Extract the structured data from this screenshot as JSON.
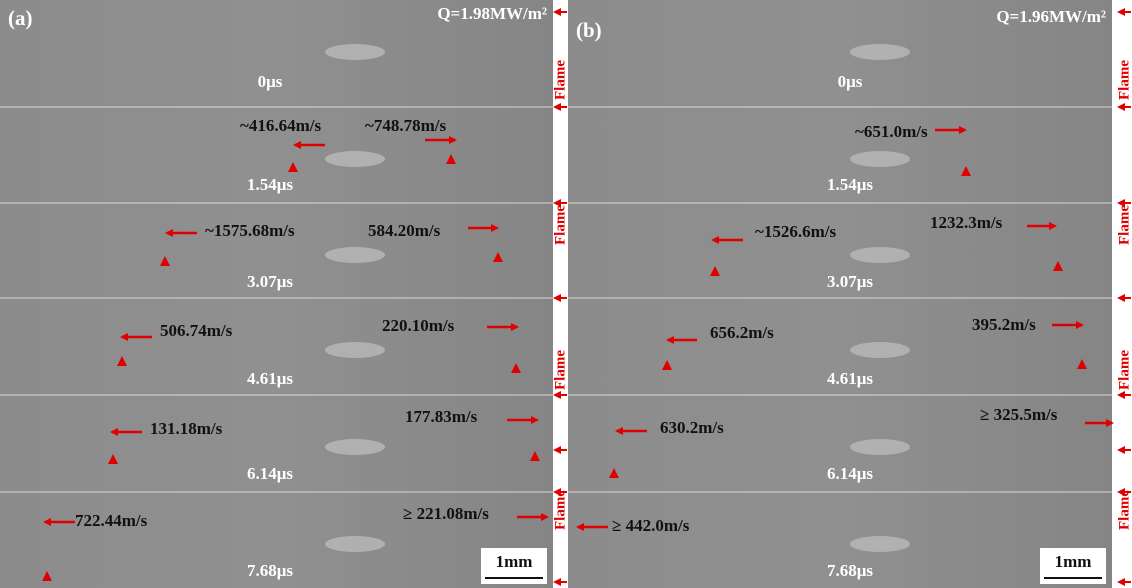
{
  "panels": [
    {
      "label": "(a)",
      "heat_flux": "Q=1.98MW/m²",
      "scale_bar": "1mm",
      "side_label": "Flame",
      "frames": [
        {
          "time": "0μs"
        },
        {
          "time": "1.54μs",
          "velocities": [
            "~416.64m/s",
            "~748.78m/s"
          ]
        },
        {
          "time": "3.07μs",
          "velocities": [
            "~1575.68m/s",
            "584.20m/s"
          ]
        },
        {
          "time": "4.61μs",
          "velocities": [
            "506.74m/s",
            "220.10m/s"
          ]
        },
        {
          "time": "6.14μs",
          "velocities": [
            "131.18m/s",
            "177.83m/s"
          ]
        },
        {
          "time": "7.68μs",
          "velocities": [
            "722.44m/s",
            "≥ 221.08m/s"
          ]
        }
      ]
    },
    {
      "label": "(b)",
      "heat_flux": "Q=1.96MW/m²",
      "scale_bar": "1mm",
      "side_label": "Flame",
      "frames": [
        {
          "time": "0μs"
        },
        {
          "time": "1.54μs",
          "velocities": [
            "~651.0m/s"
          ]
        },
        {
          "time": "3.07μs",
          "velocities": [
            "~1526.6m/s",
            "1232.3m/s"
          ]
        },
        {
          "time": "4.61μs",
          "velocities": [
            "656.2m/s",
            "395.2m/s"
          ]
        },
        {
          "time": "6.14μs",
          "velocities": [
            "630.2m/s",
            "≥ 325.5m/s"
          ]
        },
        {
          "time": "7.68μs",
          "velocities": [
            "≥ 442.0m/s"
          ]
        }
      ]
    }
  ]
}
